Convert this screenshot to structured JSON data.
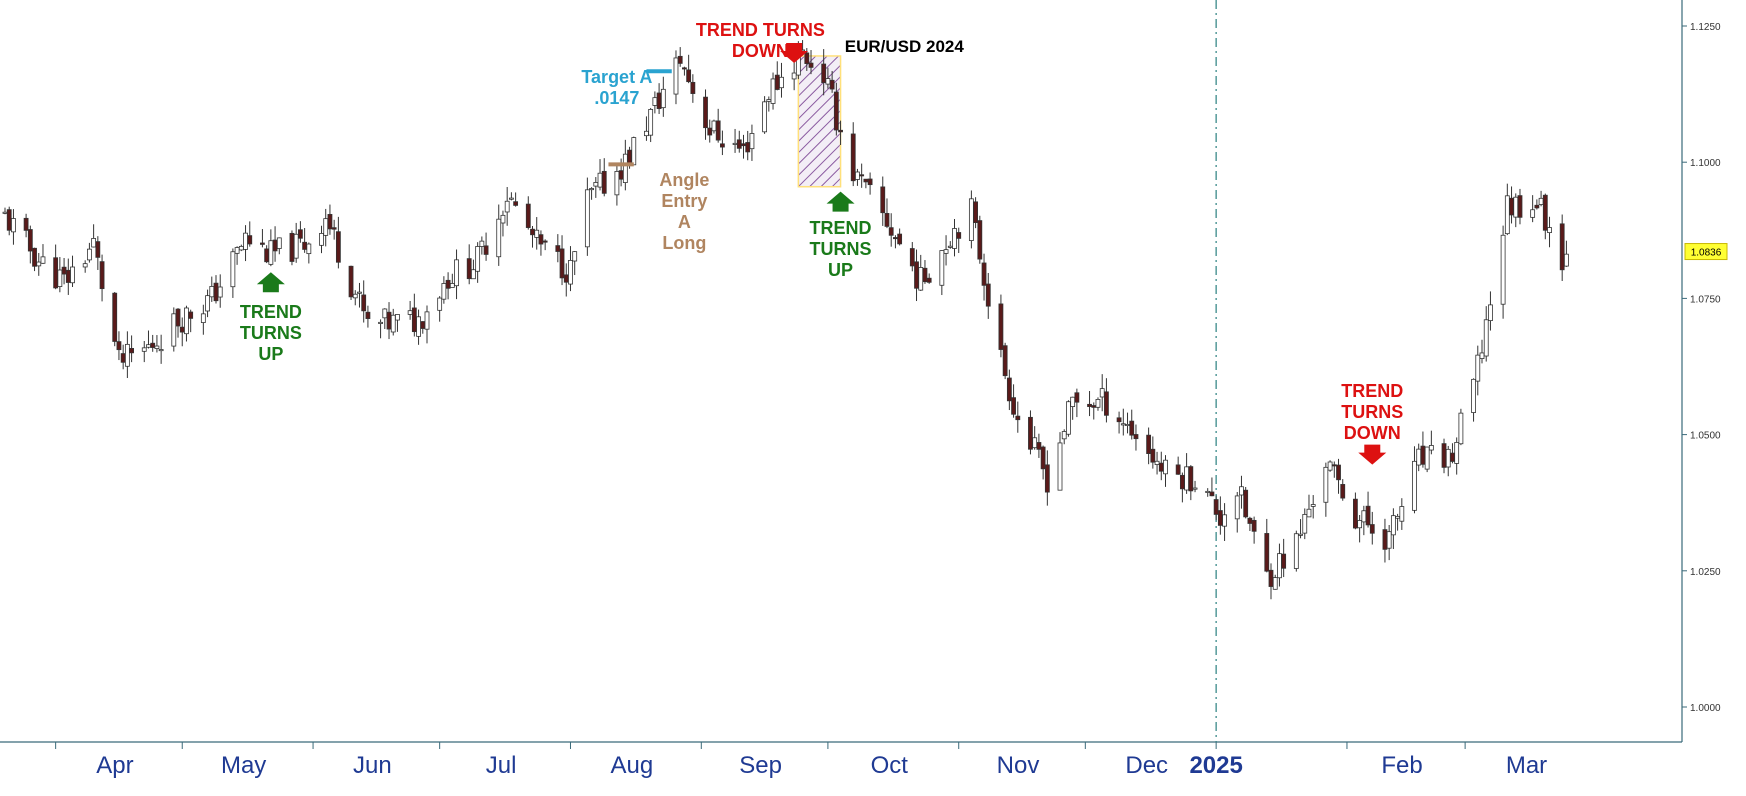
{
  "chart_data": {
    "type": "candlestick",
    "title": "EUR/USD 2024",
    "x_ticks": [
      "Apr",
      "May",
      "Jun",
      "Jul",
      "Aug",
      "Sep",
      "Oct",
      "Nov",
      "Dec",
      "2025",
      "Feb",
      "Mar"
    ],
    "y_ticks": [
      "1.1250",
      "1.1000",
      "1.0750",
      "1.0500",
      "1.0250",
      "1.0000"
    ],
    "ylim": [
      0.9965,
      1.128
    ],
    "last_price": "1.0836",
    "price_path": [
      [
        "2024-03-20",
        1.09
      ],
      [
        "2024-03-28",
        1.082
      ],
      [
        "2024-04-03",
        1.078
      ],
      [
        "2024-04-10",
        1.085
      ],
      [
        "2024-04-16",
        1.063
      ],
      [
        "2024-04-23",
        1.066
      ],
      [
        "2024-04-30",
        1.071
      ],
      [
        "2024-05-08",
        1.075
      ],
      [
        "2024-05-16",
        1.086
      ],
      [
        "2024-05-22",
        1.083
      ],
      [
        "2024-05-30",
        1.085
      ],
      [
        "2024-06-04",
        1.09
      ],
      [
        "2024-06-10",
        1.078
      ],
      [
        "2024-06-14",
        1.07
      ],
      [
        "2024-06-26",
        1.071
      ],
      [
        "2024-07-03",
        1.079
      ],
      [
        "2024-07-10",
        1.082
      ],
      [
        "2024-07-17",
        1.094
      ],
      [
        "2024-07-24",
        1.085
      ],
      [
        "2024-08-01",
        1.08
      ],
      [
        "2024-08-05",
        1.093
      ],
      [
        "2024-08-14",
        1.1
      ],
      [
        "2024-08-23",
        1.113
      ],
      [
        "2024-08-27",
        1.119
      ],
      [
        "2024-09-03",
        1.106
      ],
      [
        "2024-09-11",
        1.102
      ],
      [
        "2024-09-17",
        1.113
      ],
      [
        "2024-09-25",
        1.12
      ],
      [
        "2024-09-30",
        1.116
      ],
      [
        "2024-10-07",
        1.098
      ],
      [
        "2024-10-15",
        1.089
      ],
      [
        "2024-10-23",
        1.078
      ],
      [
        "2024-10-31",
        1.088
      ],
      [
        "2024-11-04",
        1.091
      ],
      [
        "2024-11-11",
        1.064
      ],
      [
        "2024-11-15",
        1.053
      ],
      [
        "2024-11-22",
        1.042
      ],
      [
        "2024-11-28",
        1.056
      ],
      [
        "2024-12-06",
        1.056
      ],
      [
        "2024-12-13",
        1.05
      ],
      [
        "2024-12-20",
        1.043
      ],
      [
        "2024-12-27",
        1.042
      ],
      [
        "2025-01-02",
        1.035
      ],
      [
        "2025-01-06",
        1.04
      ],
      [
        "2025-01-13",
        1.024
      ],
      [
        "2025-01-20",
        1.03
      ],
      [
        "2025-01-27",
        1.045
      ],
      [
        "2025-02-03",
        1.035
      ],
      [
        "2025-02-11",
        1.031
      ],
      [
        "2025-02-18",
        1.045
      ],
      [
        "2025-02-26",
        1.046
      ],
      [
        "2025-03-04",
        1.062
      ],
      [
        "2025-03-11",
        1.092
      ],
      [
        "2025-03-18",
        1.093
      ],
      [
        "2025-03-24",
        1.083
      ]
    ],
    "annotations": {
      "target_a": "Target A\n.0147",
      "angle_entry": "Angle\nEntry\nA\nLong",
      "trend_up_may": "TREND\nTURNS\nUP",
      "trend_down_sep": "TREND TURNS\nDOWN",
      "trend_up_oct": "TREND\nTURNS\nUP",
      "trend_down_feb": "TREND\nTURNS\nDOWN"
    },
    "colors": {
      "up_candle_fill": "#ffffff",
      "down_candle_fill": "#5a1a1a",
      "candle_outline": "#333333",
      "trend_up": "#1a7a1a",
      "trend_down": "#dd1111",
      "target": "#2aa3d0",
      "angle_entry": "#b08560",
      "axis_labels": "#1f3a93",
      "box_hatch": "#8a5aa0",
      "box_border": "#ffe07a",
      "year_separator": "#3a8a8a",
      "last_price_tag": "#ffff33"
    }
  }
}
